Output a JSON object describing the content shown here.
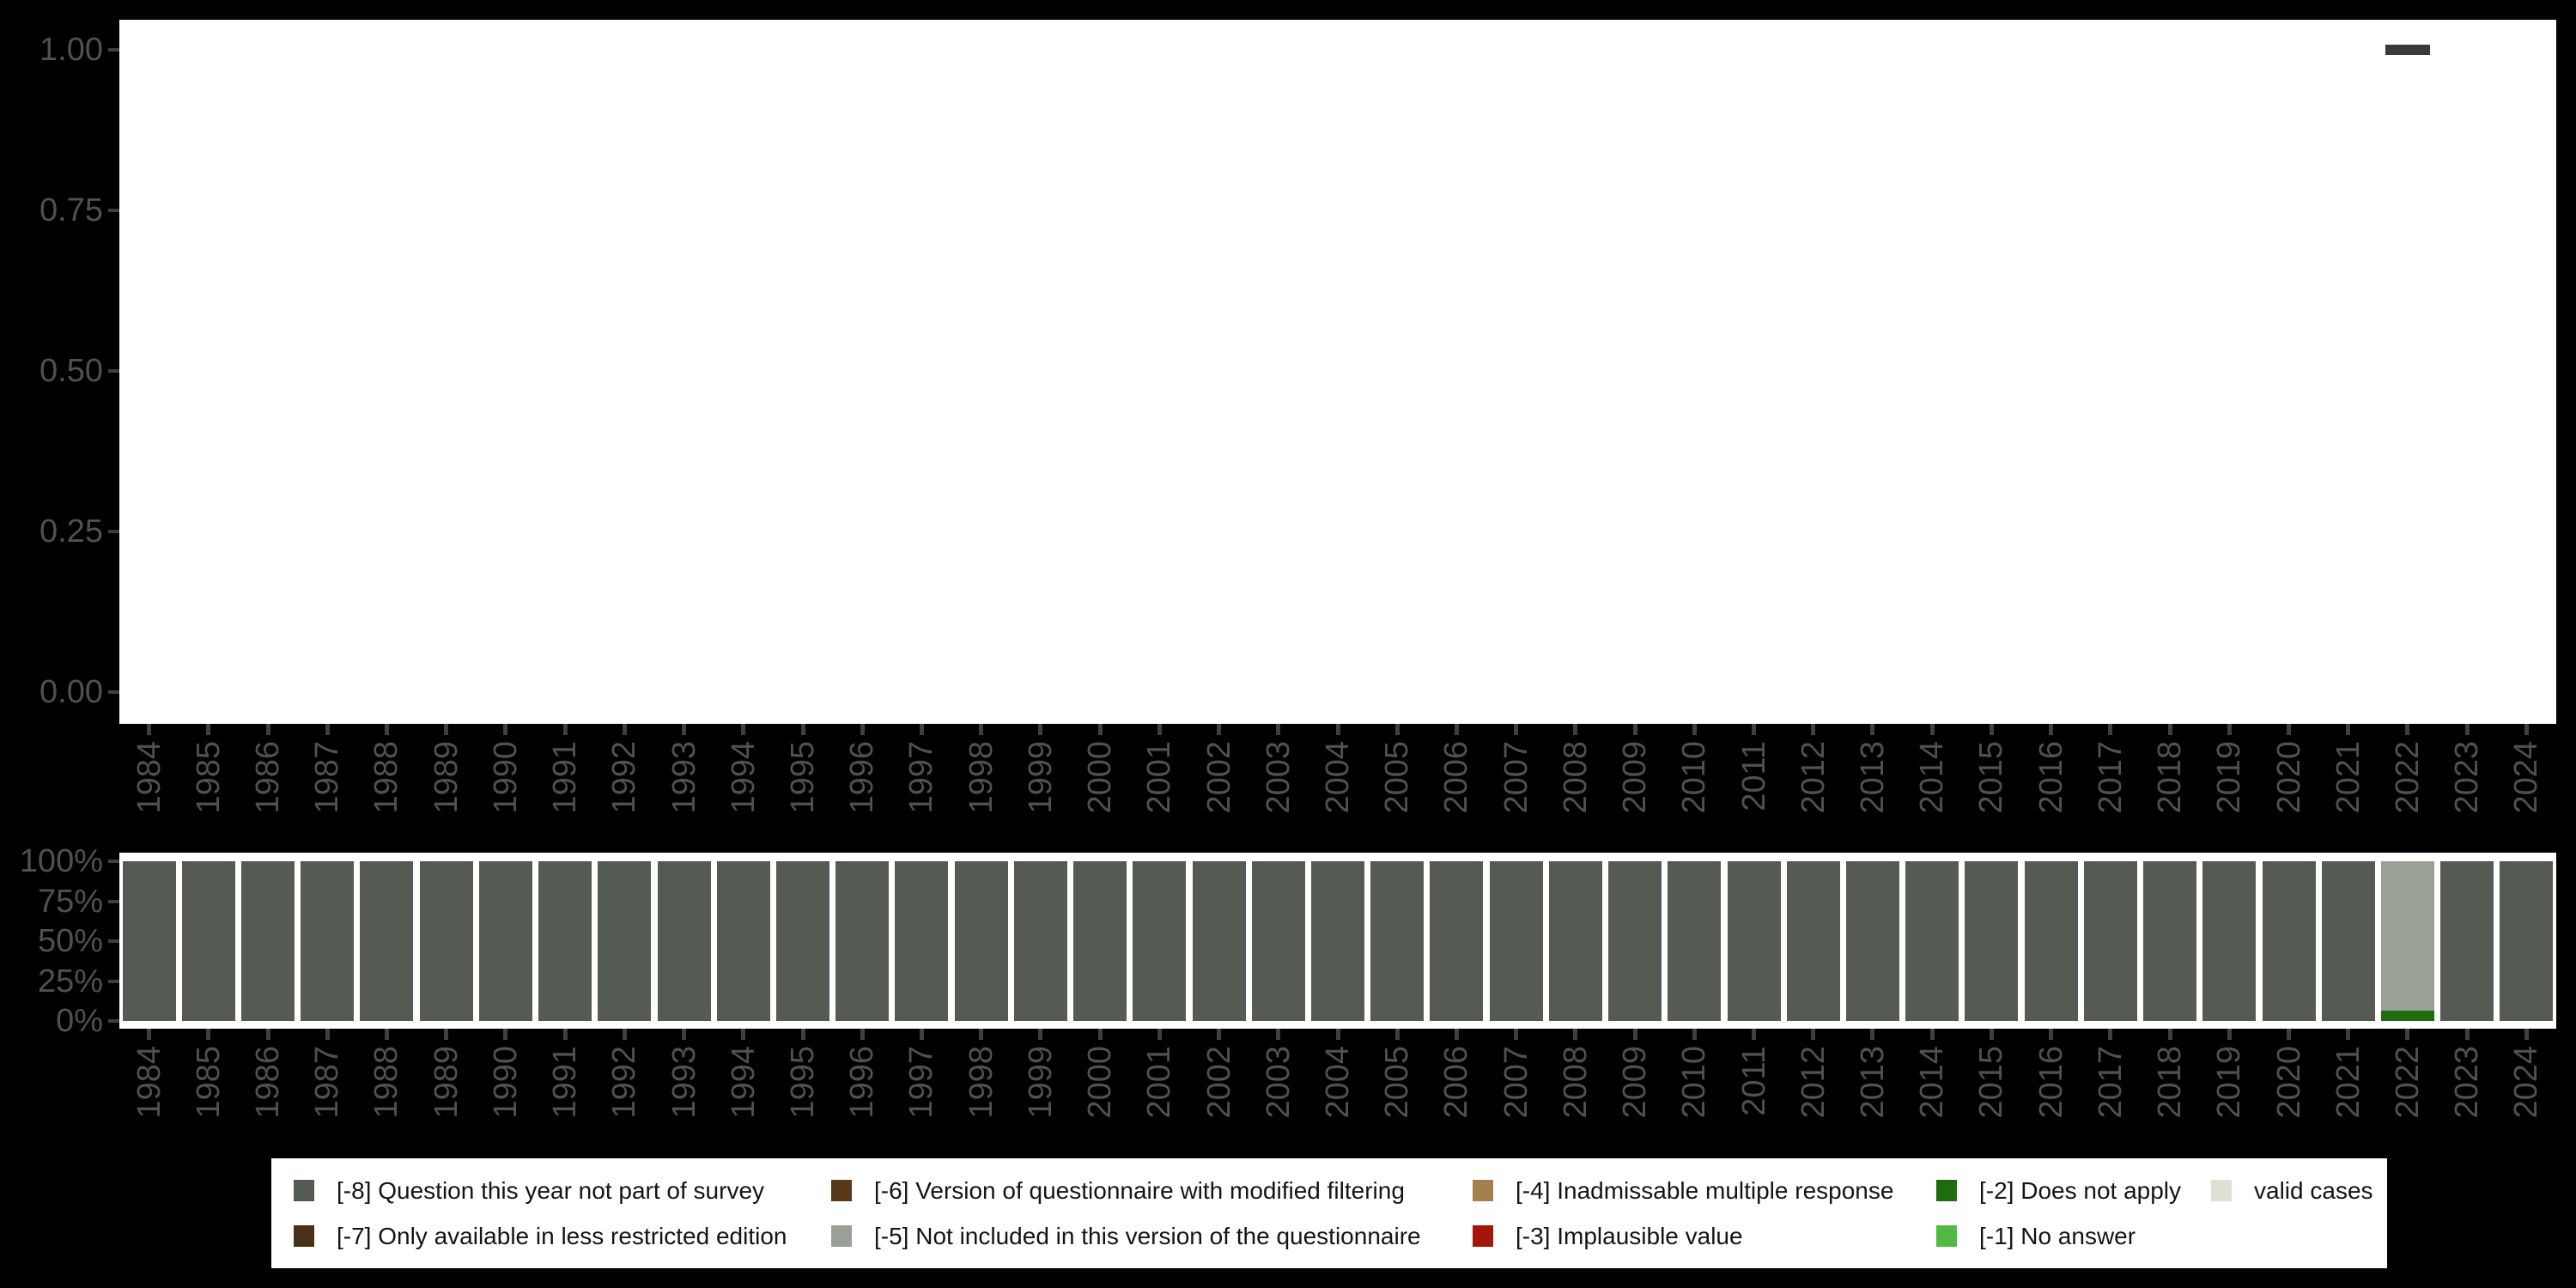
{
  "colors": {
    "background": "#000000",
    "panel": "#ffffff",
    "axis_text": "#505050",
    "axis_tick": "#3f3f3f",
    "legend_text": "#141414",
    "top_marker": "#3a3a3a",
    "categories": {
      "-8": "#555b52",
      "-7": "#4a3017",
      "-6": "#59381c",
      "-5": "#9aa096",
      "-4": "#a5804f",
      "-3": "#a6150b",
      "-2": "#1e6b10",
      "-1": "#50b942",
      "valid": "#dce0d5"
    }
  },
  "legend": {
    "items": [
      {
        "code": "-8",
        "label": "[-8] Question this year not part of survey",
        "row": 0,
        "col": 0
      },
      {
        "code": "-7",
        "label": "[-7] Only available in less restricted edition",
        "row": 1,
        "col": 0
      },
      {
        "code": "-6",
        "label": "[-6] Version of questionnaire with modified filtering",
        "row": 0,
        "col": 1
      },
      {
        "code": "-5",
        "label": "[-5] Not included in this version of the questionnaire",
        "row": 1,
        "col": 1
      },
      {
        "code": "-4",
        "label": "[-4] Inadmissable multiple response",
        "row": 0,
        "col": 2
      },
      {
        "code": "-3",
        "label": "[-3] Implausible value",
        "row": 1,
        "col": 2
      },
      {
        "code": "-2",
        "label": "[-2] Does not apply",
        "row": 0,
        "col": 3
      },
      {
        "code": "-1",
        "label": "[-1] No answer",
        "row": 1,
        "col": 3
      },
      {
        "code": "valid",
        "label": "valid cases",
        "row": 0,
        "col": 4
      }
    ]
  },
  "chart_data": [
    {
      "type": "scatter",
      "title": "",
      "xlabel": "",
      "ylabel": "",
      "x": [
        2022
      ],
      "y": [
        1.0
      ],
      "marker": "dash",
      "ylim": [
        0,
        1
      ],
      "yticks": [
        {
          "value": 0.0,
          "label": "0.00"
        },
        {
          "value": 0.25,
          "label": "0.25"
        },
        {
          "value": 0.5,
          "label": "0.50"
        },
        {
          "value": 0.75,
          "label": "0.75"
        },
        {
          "value": 1.0,
          "label": "1.00"
        }
      ],
      "categories": [
        "1984",
        "1985",
        "1986",
        "1987",
        "1988",
        "1989",
        "1990",
        "1991",
        "1992",
        "1993",
        "1994",
        "1995",
        "1996",
        "1997",
        "1998",
        "1999",
        "2000",
        "2001",
        "2002",
        "2003",
        "2004",
        "2005",
        "2006",
        "2007",
        "2008",
        "2009",
        "2010",
        "2011",
        "2012",
        "2013",
        "2014",
        "2015",
        "2016",
        "2017",
        "2018",
        "2019",
        "2020",
        "2021",
        "2022",
        "2023",
        "2024"
      ],
      "grid": false,
      "legend_position": "none"
    },
    {
      "type": "bar",
      "subtype": "stacked-percent",
      "title": "",
      "xlabel": "",
      "ylabel": "",
      "ylim": [
        0,
        100
      ],
      "yticks": [
        {
          "value": 0,
          "label": "0%"
        },
        {
          "value": 25,
          "label": "25%"
        },
        {
          "value": 50,
          "label": "50%"
        },
        {
          "value": 75,
          "label": "75%"
        },
        {
          "value": 100,
          "label": "100%"
        }
      ],
      "categories": [
        "1984",
        "1985",
        "1986",
        "1987",
        "1988",
        "1989",
        "1990",
        "1991",
        "1992",
        "1993",
        "1994",
        "1995",
        "1996",
        "1997",
        "1998",
        "1999",
        "2000",
        "2001",
        "2002",
        "2003",
        "2004",
        "2005",
        "2006",
        "2007",
        "2008",
        "2009",
        "2010",
        "2011",
        "2012",
        "2013",
        "2014",
        "2015",
        "2016",
        "2017",
        "2018",
        "2019",
        "2020",
        "2021",
        "2022",
        "2023",
        "2024"
      ],
      "bars": [
        {
          "year": "1984",
          "segments": [
            {
              "code": "-8",
              "pct": 100
            }
          ]
        },
        {
          "year": "1985",
          "segments": [
            {
              "code": "-8",
              "pct": 100
            }
          ]
        },
        {
          "year": "1986",
          "segments": [
            {
              "code": "-8",
              "pct": 100
            }
          ]
        },
        {
          "year": "1987",
          "segments": [
            {
              "code": "-8",
              "pct": 100
            }
          ]
        },
        {
          "year": "1988",
          "segments": [
            {
              "code": "-8",
              "pct": 100
            }
          ]
        },
        {
          "year": "1989",
          "segments": [
            {
              "code": "-8",
              "pct": 100
            }
          ]
        },
        {
          "year": "1990",
          "segments": [
            {
              "code": "-8",
              "pct": 100
            }
          ]
        },
        {
          "year": "1991",
          "segments": [
            {
              "code": "-8",
              "pct": 100
            }
          ]
        },
        {
          "year": "1992",
          "segments": [
            {
              "code": "-8",
              "pct": 100
            }
          ]
        },
        {
          "year": "1993",
          "segments": [
            {
              "code": "-8",
              "pct": 100
            }
          ]
        },
        {
          "year": "1994",
          "segments": [
            {
              "code": "-8",
              "pct": 100
            }
          ]
        },
        {
          "year": "1995",
          "segments": [
            {
              "code": "-8",
              "pct": 100
            }
          ]
        },
        {
          "year": "1996",
          "segments": [
            {
              "code": "-8",
              "pct": 100
            }
          ]
        },
        {
          "year": "1997",
          "segments": [
            {
              "code": "-8",
              "pct": 100
            }
          ]
        },
        {
          "year": "1998",
          "segments": [
            {
              "code": "-8",
              "pct": 100
            }
          ]
        },
        {
          "year": "1999",
          "segments": [
            {
              "code": "-8",
              "pct": 100
            }
          ]
        },
        {
          "year": "2000",
          "segments": [
            {
              "code": "-8",
              "pct": 100
            }
          ]
        },
        {
          "year": "2001",
          "segments": [
            {
              "code": "-8",
              "pct": 100
            }
          ]
        },
        {
          "year": "2002",
          "segments": [
            {
              "code": "-8",
              "pct": 100
            }
          ]
        },
        {
          "year": "2003",
          "segments": [
            {
              "code": "-8",
              "pct": 100
            }
          ]
        },
        {
          "year": "2004",
          "segments": [
            {
              "code": "-8",
              "pct": 100
            }
          ]
        },
        {
          "year": "2005",
          "segments": [
            {
              "code": "-8",
              "pct": 100
            }
          ]
        },
        {
          "year": "2006",
          "segments": [
            {
              "code": "-8",
              "pct": 100
            }
          ]
        },
        {
          "year": "2007",
          "segments": [
            {
              "code": "-8",
              "pct": 100
            }
          ]
        },
        {
          "year": "2008",
          "segments": [
            {
              "code": "-8",
              "pct": 100
            }
          ]
        },
        {
          "year": "2009",
          "segments": [
            {
              "code": "-8",
              "pct": 100
            }
          ]
        },
        {
          "year": "2010",
          "segments": [
            {
              "code": "-8",
              "pct": 100
            }
          ]
        },
        {
          "year": "2011",
          "segments": [
            {
              "code": "-8",
              "pct": 100
            }
          ]
        },
        {
          "year": "2012",
          "segments": [
            {
              "code": "-8",
              "pct": 100
            }
          ]
        },
        {
          "year": "2013",
          "segments": [
            {
              "code": "-8",
              "pct": 100
            }
          ]
        },
        {
          "year": "2014",
          "segments": [
            {
              "code": "-8",
              "pct": 100
            }
          ]
        },
        {
          "year": "2015",
          "segments": [
            {
              "code": "-8",
              "pct": 100
            }
          ]
        },
        {
          "year": "2016",
          "segments": [
            {
              "code": "-8",
              "pct": 100
            }
          ]
        },
        {
          "year": "2017",
          "segments": [
            {
              "code": "-8",
              "pct": 100
            }
          ]
        },
        {
          "year": "2018",
          "segments": [
            {
              "code": "-8",
              "pct": 100
            }
          ]
        },
        {
          "year": "2019",
          "segments": [
            {
              "code": "-8",
              "pct": 100
            }
          ]
        },
        {
          "year": "2020",
          "segments": [
            {
              "code": "-8",
              "pct": 100
            }
          ]
        },
        {
          "year": "2021",
          "segments": [
            {
              "code": "-8",
              "pct": 100
            }
          ]
        },
        {
          "year": "2022",
          "segments": [
            {
              "code": "-5",
              "pct": 93.5
            },
            {
              "code": "-2",
              "pct": 6.5
            }
          ]
        },
        {
          "year": "2023",
          "segments": [
            {
              "code": "-8",
              "pct": 100
            }
          ]
        },
        {
          "year": "2024",
          "segments": [
            {
              "code": "-8",
              "pct": 100
            }
          ]
        }
      ],
      "grid": false,
      "legend_position": "bottom"
    }
  ]
}
